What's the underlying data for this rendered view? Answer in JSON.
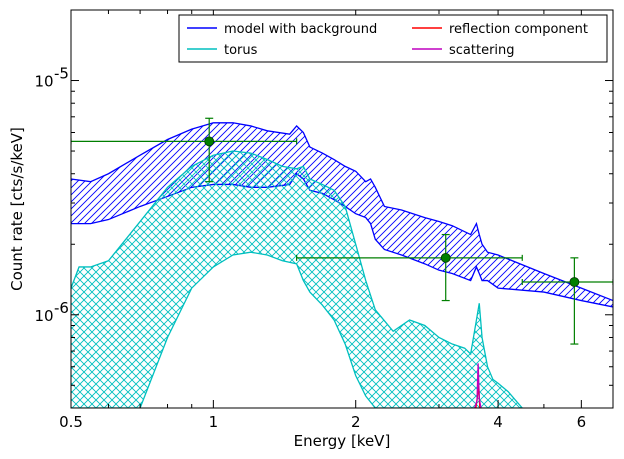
{
  "chart_data": {
    "type": "line",
    "xscale": "log",
    "yscale": "log",
    "xlim": [
      0.5,
      7.0
    ],
    "ylim": [
      4e-07,
      2e-05
    ],
    "xlabel": "Energy [keV]",
    "ylabel": "Count rate [cts/s/keV]",
    "x_ticks": [
      {
        "value": 0.5,
        "label": "0.5"
      },
      {
        "value": 1,
        "label": "1"
      },
      {
        "value": 2,
        "label": "2"
      },
      {
        "value": 4,
        "label": "4"
      },
      {
        "value": 6,
        "label": "6"
      }
    ],
    "y_ticks": [
      {
        "value": 1e-06,
        "label": "10",
        "exp": "-6"
      },
      {
        "value": 1e-05,
        "label": "10",
        "exp": "-5"
      }
    ],
    "legend": {
      "placement": "top-right",
      "columns": 2,
      "entries": [
        {
          "name": "model with background",
          "color": "#0000ff"
        },
        {
          "name": "torus",
          "color": "#00bfbf"
        },
        {
          "name": "reflection component",
          "color": "#ff0000"
        },
        {
          "name": "scattering",
          "color": "#bf00bf"
        }
      ]
    },
    "bands": [
      {
        "name": "model with background",
        "color": "#0000ff",
        "hatch": "diagonal",
        "x": [
          0.5,
          0.55,
          0.6,
          0.7,
          0.8,
          0.9,
          1.0,
          1.1,
          1.2,
          1.3,
          1.45,
          1.5,
          1.55,
          1.6,
          1.7,
          1.8,
          1.9,
          2.0,
          2.1,
          2.15,
          2.2,
          2.3,
          2.5,
          2.8,
          3.0,
          3.2,
          3.5,
          3.6,
          3.65,
          3.7,
          3.8,
          4.0,
          5.0,
          6.0,
          7.0
        ],
        "upper": [
          3.8e-06,
          3.7e-06,
          4e-06,
          4.8e-06,
          5.6e-06,
          6.2e-06,
          6.6e-06,
          6.6e-06,
          6.4e-06,
          6.1e-06,
          5.9e-06,
          6.4e-06,
          6e-06,
          5.2e-06,
          4.9e-06,
          4.6e-06,
          4.3e-06,
          4.1e-06,
          3.7e-06,
          3.8e-06,
          3.5e-06,
          2.9e-06,
          2.8e-06,
          2.6e-06,
          2.5e-06,
          2.4e-06,
          2.2e-06,
          2.45e-06,
          2.2e-06,
          2e-06,
          1.85e-06,
          1.8e-06,
          1.5e-06,
          1.3e-06,
          1.15e-06
        ],
        "lower": [
          2.45e-06,
          2.45e-06,
          2.55e-06,
          2.9e-06,
          3.2e-06,
          3.5e-06,
          3.6e-06,
          3.6e-06,
          3.5e-06,
          3.5e-06,
          3.6e-06,
          4e-06,
          3.8e-06,
          3.4e-06,
          3.3e-06,
          3.1e-06,
          2.9e-06,
          2.7e-06,
          2.6e-06,
          2.45e-06,
          2.1e-06,
          1.9e-06,
          1.8e-06,
          1.65e-06,
          1.55e-06,
          1.5e-06,
          1.4e-06,
          1.6e-06,
          1.5e-06,
          1.4e-06,
          1.4e-06,
          1.3e-06,
          1.25e-06,
          1.15e-06,
          1.08e-06
        ]
      },
      {
        "name": "torus",
        "color": "#00bfbf",
        "hatch": "cross",
        "x": [
          0.5,
          0.52,
          0.55,
          0.6,
          0.7,
          0.8,
          0.9,
          1.0,
          1.1,
          1.2,
          1.3,
          1.4,
          1.5,
          1.55,
          1.6,
          1.7,
          1.8,
          1.9,
          2.0,
          2.1,
          2.2,
          2.4,
          2.6,
          2.8,
          3.0,
          3.2,
          3.4,
          3.5,
          3.6,
          3.65,
          3.7,
          3.8,
          3.9,
          4.0,
          4.2,
          4.5
        ],
        "upper": [
          1.3e-06,
          1.6e-06,
          1.6e-06,
          1.7e-06,
          2.5e-06,
          3.5e-06,
          4.3e-06,
          4.8e-06,
          5e-06,
          4.9e-06,
          4.6e-06,
          4.3e-06,
          4.2e-06,
          4.3e-06,
          3.8e-06,
          3.6e-06,
          3.4e-06,
          2.9e-06,
          2e-06,
          1.4e-06,
          1.05e-06,
          8.5e-07,
          9.5e-07,
          9e-07,
          8e-07,
          7.5e-07,
          7.2e-07,
          6.8e-07,
          9.5e-07,
          1.12e-06,
          8e-07,
          6e-07,
          5.3e-07,
          5.1e-07,
          4.7e-07,
          4e-07
        ],
        "lower": [
          4e-07,
          4e-07,
          4e-07,
          4e-07,
          4e-07,
          8e-07,
          1.3e-06,
          1.6e-06,
          1.8e-06,
          1.85e-06,
          1.8e-06,
          1.7e-06,
          1.65e-06,
          1.4e-06,
          1.25e-06,
          1.1e-06,
          9.5e-07,
          7.5e-07,
          5.5e-07,
          4.5e-07,
          4e-07,
          4e-07,
          4e-07,
          4e-07,
          4e-07,
          4e-07,
          4e-07,
          4e-07,
          4e-07,
          4e-07,
          4e-07,
          4e-07,
          4e-07,
          4e-07,
          4e-07,
          4e-07
        ]
      }
    ],
    "series": [
      {
        "name": "reflection component",
        "color": "#ff0000",
        "x": [
          3.55,
          3.59,
          3.62,
          3.64,
          3.66,
          3.7
        ],
        "y": [
          4e-07,
          4e-07,
          4.5e-07,
          5e-07,
          4e-07,
          4e-07
        ]
      },
      {
        "name": "scattering",
        "color": "#bf00bf",
        "x": [
          3.57,
          3.61,
          3.63,
          3.65,
          3.68
        ],
        "y": [
          4e-07,
          4.3e-07,
          6.2e-07,
          4.4e-07,
          4e-07
        ]
      }
    ],
    "data_points": {
      "color": "#007f00",
      "points": [
        {
          "x": 0.98,
          "y": 5.5e-06,
          "xerr_low": 0.5,
          "xerr_high": 1.5,
          "yerr_low": 3.7e-06,
          "yerr_high": 6.9e-06
        },
        {
          "x": 3.1,
          "y": 1.75e-06,
          "xerr_low": 1.5,
          "xerr_high": 4.5,
          "yerr_low": 1.15e-06,
          "yerr_high": 2.2e-06
        },
        {
          "x": 5.8,
          "y": 1.38e-06,
          "xerr_low": 4.5,
          "xerr_high": 7.0,
          "yerr_low": 7.5e-07,
          "yerr_high": 1.75e-06
        }
      ]
    }
  }
}
